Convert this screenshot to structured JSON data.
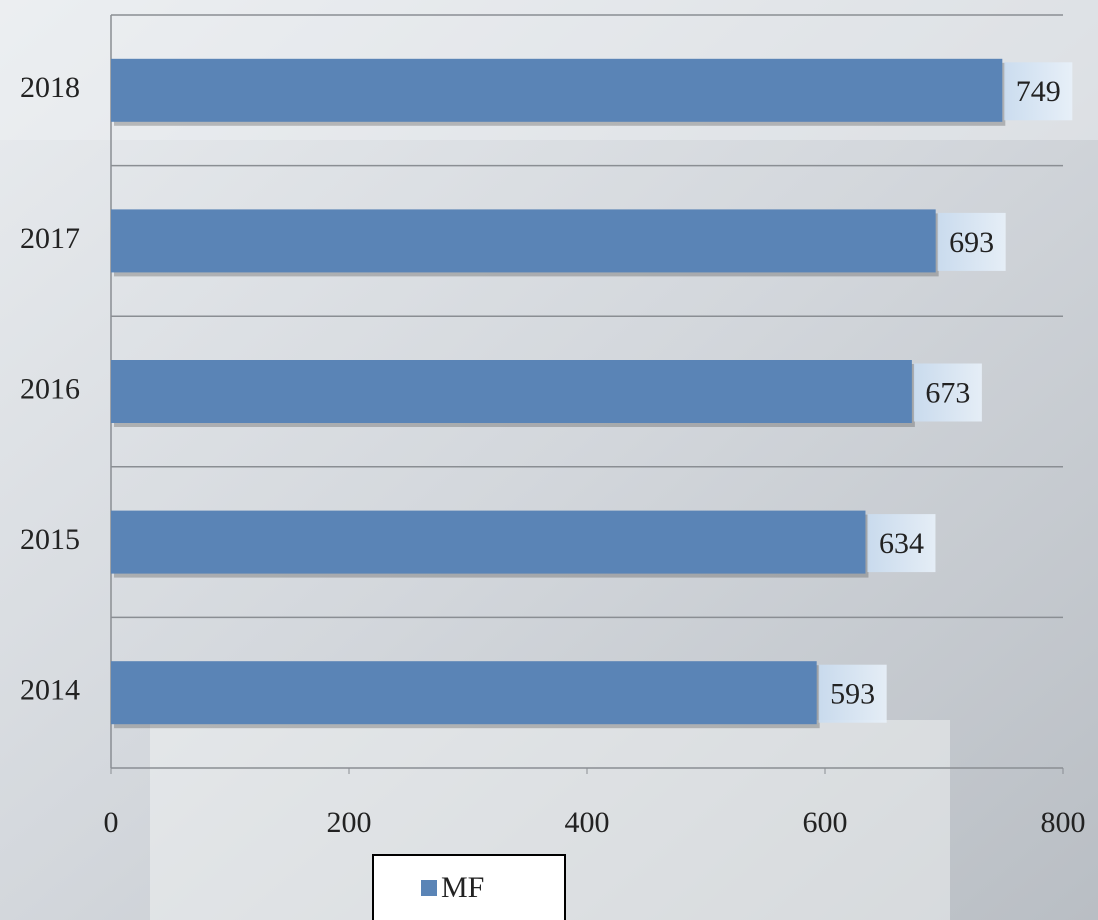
{
  "chart_data": {
    "type": "bar",
    "orientation": "horizontal",
    "categories": [
      "2018",
      "2017",
      "2016",
      "2015",
      "2014"
    ],
    "series": [
      {
        "name": "MF",
        "color": "#5a84b6",
        "values": [
          749,
          693,
          673,
          634,
          593
        ]
      }
    ],
    "xlim": [
      0,
      800
    ],
    "xticks": [
      0,
      200,
      400,
      600,
      800
    ],
    "legend": "bottom"
  }
}
